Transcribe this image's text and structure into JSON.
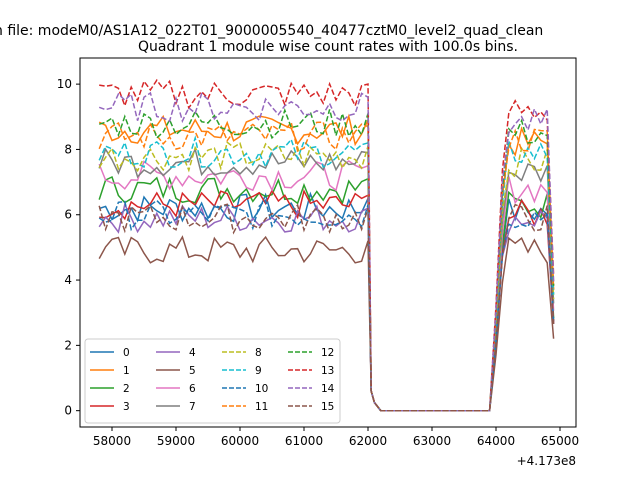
{
  "figure": {
    "suptitle": "n file: modeM0/AS1A12_022T01_9000005540_40477cztM0_level2_quad_clean",
    "offset_label": "+4.173e8"
  },
  "chart_data": {
    "type": "line",
    "title": "Quadrant 1 module wise count rates with 100.0s bins.",
    "xlabel": "",
    "ylabel": "",
    "x_offset": 417300000,
    "xlim": [
      57500,
      65250
    ],
    "ylim": [
      -0.5,
      10.8
    ],
    "xticks": [
      58000,
      59000,
      60000,
      61000,
      62000,
      63000,
      64000,
      65000
    ],
    "yticks": [
      0,
      2,
      4,
      6,
      8,
      10
    ],
    "grid": false,
    "legend_position": "lower-left",
    "legend_columns": 4,
    "segments": [
      {
        "x_start": 57800,
        "x_end": 62000,
        "step": 100
      },
      {
        "x_start": 62000,
        "x_end": 64900,
        "step": 100
      }
    ],
    "series": [
      {
        "name": "0",
        "color": "#1f77b4",
        "dash": "solid",
        "level1": 6.2,
        "level2": 6.1
      },
      {
        "name": "1",
        "color": "#ff7f0e",
        "dash": "solid",
        "level1": 8.6,
        "level2": 8.2
      },
      {
        "name": "2",
        "color": "#2ca02c",
        "dash": "solid",
        "level1": 6.8,
        "level2": 6.3
      },
      {
        "name": "3",
        "color": "#d62728",
        "dash": "solid",
        "level1": 6.3,
        "level2": 6.0
      },
      {
        "name": "4",
        "color": "#9467bd",
        "dash": "solid",
        "level1": 5.9,
        "level2": 5.9
      },
      {
        "name": "5",
        "color": "#8c564b",
        "dash": "solid",
        "level1": 4.9,
        "level2": 4.9
      },
      {
        "name": "6",
        "color": "#e377c2",
        "dash": "solid",
        "level1": 7.2,
        "level2": 6.8
      },
      {
        "name": "7",
        "color": "#7f7f7f",
        "dash": "solid",
        "level1": 7.6,
        "level2": 7.3
      },
      {
        "name": "8",
        "color": "#bcbd22",
        "dash": "dashed",
        "level1": 7.8,
        "level2": 7.6
      },
      {
        "name": "9",
        "color": "#17becf",
        "dash": "dashed",
        "level1": 7.9,
        "level2": 7.9
      },
      {
        "name": "10",
        "color": "#1f77b4",
        "dash": "dashed",
        "level1": 6.0,
        "level2": 6.0
      },
      {
        "name": "11",
        "color": "#ff7f0e",
        "dash": "dashed",
        "level1": 8.4,
        "level2": 8.3
      },
      {
        "name": "12",
        "color": "#2ca02c",
        "dash": "dashed",
        "level1": 8.8,
        "level2": 8.5
      },
      {
        "name": "13",
        "color": "#d62728",
        "dash": "dashed",
        "level1": 9.7,
        "level2": 9.2
      },
      {
        "name": "14",
        "color": "#9467bd",
        "dash": "dashed",
        "level1": 9.3,
        "level2": 8.8
      },
      {
        "name": "15",
        "color": "#8c564b",
        "dash": "dashed",
        "level1": 5.9,
        "level2": 5.9
      }
    ],
    "gap": {
      "x_from": 62100,
      "x_to": 63900,
      "value": 0
    }
  }
}
